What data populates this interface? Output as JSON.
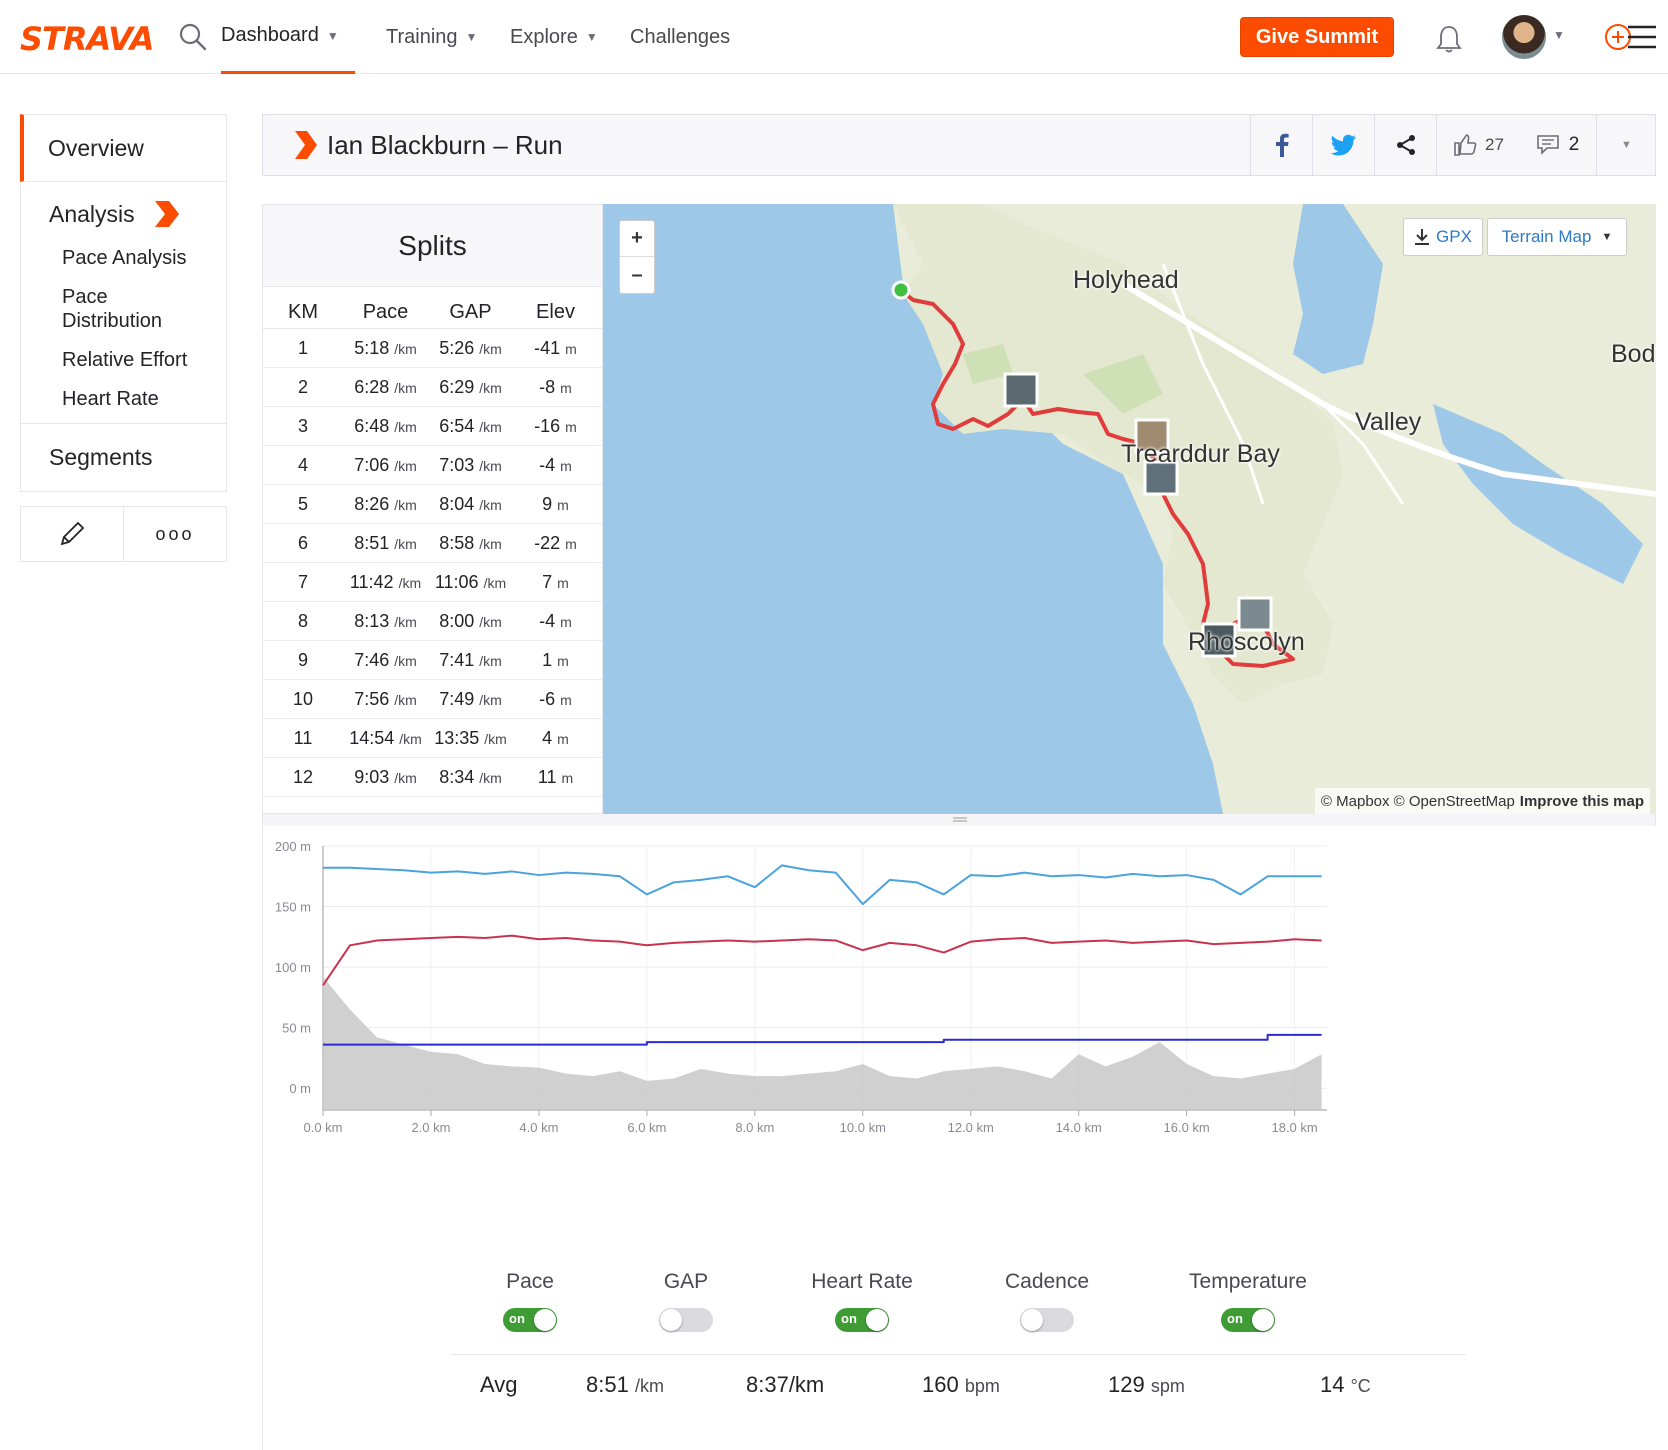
{
  "brand": {
    "logo_text": "STRAVA",
    "accent": "#fc4c02"
  },
  "nav": {
    "items": [
      {
        "label": "Dashboard",
        "dropdown": true,
        "active": true
      },
      {
        "label": "Training",
        "dropdown": true
      },
      {
        "label": "Explore",
        "dropdown": true
      },
      {
        "label": "Challenges",
        "dropdown": false
      }
    ],
    "give_button": "Give Summit",
    "icons": [
      "search-icon",
      "bell-icon",
      "avatar",
      "menu-icon"
    ]
  },
  "sidebar": {
    "overview": "Overview",
    "analysis": "Analysis",
    "sub_items": [
      "Pace Analysis",
      "Pace Distribution",
      "Relative Effort",
      "Heart Rate"
    ],
    "segments": "Segments",
    "more_label": "ooo"
  },
  "activity": {
    "title": "Ian Blackburn – Run",
    "kudos": "27",
    "comments": "2"
  },
  "splits": {
    "title": "Splits",
    "columns": [
      "KM",
      "Pace",
      "GAP",
      "Elev"
    ],
    "rows": [
      {
        "km": "1",
        "pace": "5:18",
        "pace_unit": "/km",
        "gap": "5:26",
        "gap_unit": "/km",
        "elev": "-41",
        "elev_unit": "m"
      },
      {
        "km": "2",
        "pace": "6:28",
        "pace_unit": "/km",
        "gap": "6:29",
        "gap_unit": "/km",
        "elev": "-8",
        "elev_unit": "m"
      },
      {
        "km": "3",
        "pace": "6:48",
        "pace_unit": "/km",
        "gap": "6:54",
        "gap_unit": "/km",
        "elev": "-16",
        "elev_unit": "m"
      },
      {
        "km": "4",
        "pace": "7:06",
        "pace_unit": "/km",
        "gap": "7:03",
        "gap_unit": "/km",
        "elev": "-4",
        "elev_unit": "m"
      },
      {
        "km": "5",
        "pace": "8:26",
        "pace_unit": "/km",
        "gap": "8:04",
        "gap_unit": "/km",
        "elev": "9",
        "elev_unit": "m"
      },
      {
        "km": "6",
        "pace": "8:51",
        "pace_unit": "/km",
        "gap": "8:58",
        "gap_unit": "/km",
        "elev": "-22",
        "elev_unit": "m"
      },
      {
        "km": "7",
        "pace": "11:42",
        "pace_unit": "/km",
        "gap": "11:06",
        "gap_unit": "/km",
        "elev": "7",
        "elev_unit": "m"
      },
      {
        "km": "8",
        "pace": "8:13",
        "pace_unit": "/km",
        "gap": "8:00",
        "gap_unit": "/km",
        "elev": "-4",
        "elev_unit": "m"
      },
      {
        "km": "9",
        "pace": "7:46",
        "pace_unit": "/km",
        "gap": "7:41",
        "gap_unit": "/km",
        "elev": "1",
        "elev_unit": "m"
      },
      {
        "km": "10",
        "pace": "7:56",
        "pace_unit": "/km",
        "gap": "7:49",
        "gap_unit": "/km",
        "elev": "-6",
        "elev_unit": "m"
      },
      {
        "km": "11",
        "pace": "14:54",
        "pace_unit": "/km",
        "gap": "13:35",
        "gap_unit": "/km",
        "elev": "4",
        "elev_unit": "m"
      },
      {
        "km": "12",
        "pace": "9:03",
        "pace_unit": "/km",
        "gap": "8:34",
        "gap_unit": "/km",
        "elev": "11",
        "elev_unit": "m"
      }
    ]
  },
  "map": {
    "gpx": "GPX",
    "layer": "Terrain Map",
    "labels": [
      "Holyhead",
      "Valley",
      "Trearddur Bay",
      "Rhoscolyn",
      "Bod"
    ],
    "attribution_left": "© Mapbox © OpenStreetMap",
    "attribution_right": "Improve this map",
    "route_color": "#e03c3c",
    "water_color": "#9ec8e8",
    "land_color": "#e8ecd8"
  },
  "chart_data": {
    "type": "line",
    "title": "",
    "xlabel": "",
    "ylabel": "",
    "x_ticks": [
      "0.0 km",
      "2.0 km",
      "4.0 km",
      "6.0 km",
      "8.0 km",
      "10.0 km",
      "12.0 km",
      "14.0 km",
      "16.0 km",
      "18.0 km"
    ],
    "y_ticks": [
      "200 m",
      "150 m",
      "100 m",
      "50 m",
      "0 m"
    ],
    "xlim": [
      0,
      18.6
    ],
    "ylim": [
      -18,
      200
    ],
    "x": [
      0.0,
      0.5,
      1.0,
      1.5,
      2.0,
      2.5,
      3.0,
      3.5,
      4.0,
      4.5,
      5.0,
      5.5,
      6.0,
      6.5,
      7.0,
      7.5,
      8.0,
      8.5,
      9.0,
      9.5,
      10.0,
      10.5,
      11.0,
      11.5,
      12.0,
      12.5,
      13.0,
      13.5,
      14.0,
      14.5,
      15.0,
      15.5,
      16.0,
      16.5,
      17.0,
      17.5,
      18.0,
      18.5
    ],
    "series": [
      {
        "color": "#4aa3df",
        "values": [
          182,
          182,
          181,
          180,
          178,
          179,
          177,
          179,
          176,
          178,
          177,
          175,
          160,
          170,
          172,
          175,
          166,
          184,
          180,
          178,
          152,
          172,
          170,
          160,
          176,
          175,
          178,
          175,
          176,
          174,
          177,
          175,
          176,
          172,
          160,
          175,
          175,
          175
        ]
      },
      {
        "color": "#c8334f",
        "values": [
          85,
          118,
          122,
          123,
          124,
          125,
          124,
          126,
          123,
          124,
          122,
          121,
          118,
          120,
          121,
          122,
          121,
          122,
          123,
          122,
          114,
          120,
          118,
          112,
          121,
          123,
          124,
          120,
          121,
          122,
          120,
          121,
          122,
          119,
          120,
          121,
          123,
          122
        ]
      },
      {
        "color": "#2b2bd1",
        "values": [
          36,
          36,
          36,
          36,
          36,
          36,
          36,
          36,
          36,
          36,
          36,
          36,
          38,
          38,
          38,
          38,
          38,
          38,
          38,
          38,
          38,
          38,
          38,
          40,
          40,
          40,
          40,
          40,
          40,
          40,
          40,
          40,
          40,
          40,
          40,
          44,
          44,
          44
        ]
      },
      {
        "color": "#c8c8c8",
        "values": [
          92,
          65,
          42,
          36,
          30,
          28,
          20,
          18,
          17,
          12,
          10,
          14,
          6,
          8,
          16,
          12,
          10,
          10,
          12,
          14,
          20,
          10,
          8,
          14,
          16,
          18,
          14,
          8,
          28,
          18,
          26,
          38,
          20,
          10,
          8,
          12,
          16,
          28
        ]
      }
    ]
  },
  "toggles": [
    {
      "label": "Pace",
      "state": "on"
    },
    {
      "label": "GAP",
      "state": "off"
    },
    {
      "label": "Heart Rate",
      "state": "on"
    },
    {
      "label": "Cadence",
      "state": "off"
    },
    {
      "label": "Temperature",
      "state": "on"
    }
  ],
  "toggle_on_text": "on",
  "averages": {
    "label": "Avg",
    "pace": "8:51",
    "pace_unit": "/km",
    "gap": "8:37/km",
    "heart_rate": "160",
    "heart_rate_unit": "bpm",
    "cadence": "129",
    "cadence_unit": "spm",
    "temperature": "14",
    "temperature_unit": "°C"
  }
}
